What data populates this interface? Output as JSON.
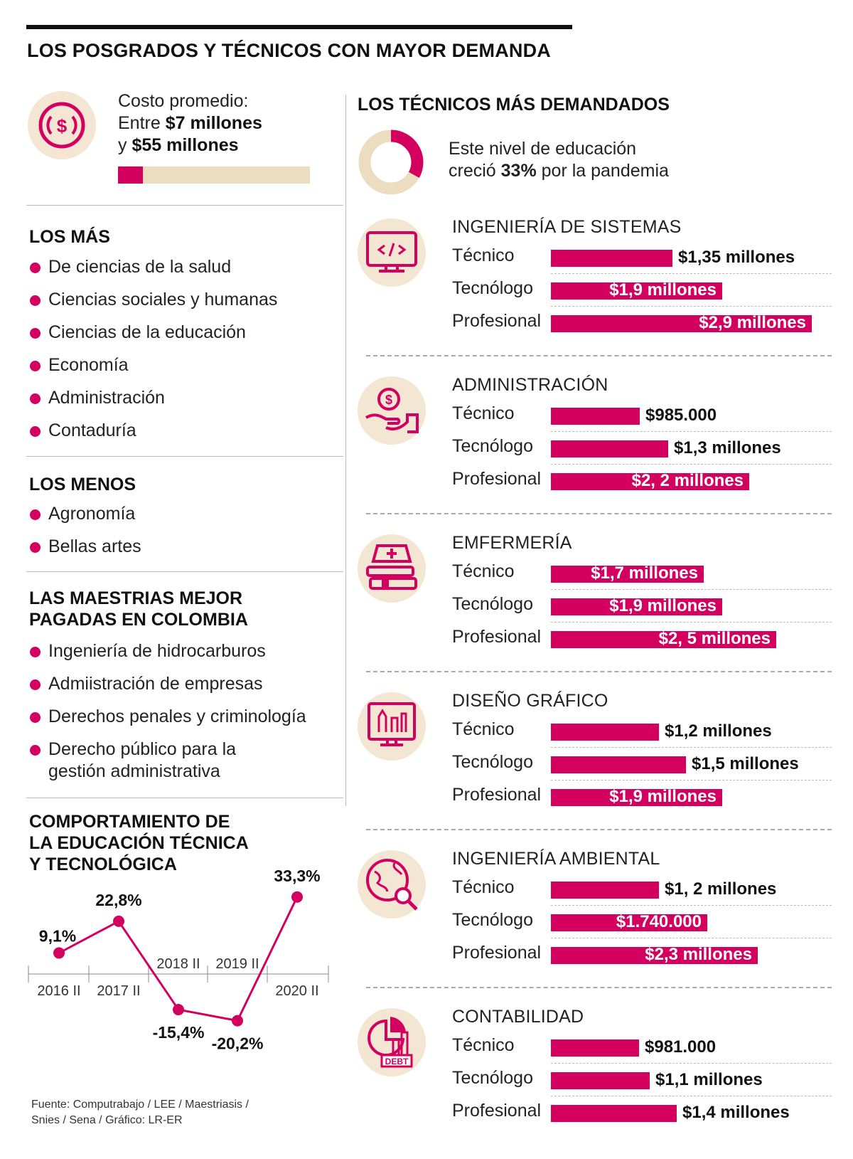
{
  "title": "LOS POSGRADOS Y TÉCNICOS CON MAYOR DEMANDA",
  "cost": {
    "line1": "Costo promedio:",
    "line2_prefix": "Entre ",
    "line2_bold": "$7 millones",
    "line3_prefix": "y ",
    "line3_bold": "$55 millones",
    "icon": "dollar-coin-icon",
    "bar_fraction": 0.13
  },
  "los_mas": {
    "title": "LOS MÁS",
    "items": [
      "De ciencias de la salud",
      "Ciencias sociales y humanas",
      "Ciencias de la educación",
      "Economía",
      "Administración",
      "Contaduría"
    ]
  },
  "los_menos": {
    "title": "LOS MENOS",
    "items": [
      "Agronomía",
      "Bellas artes"
    ]
  },
  "maestrias": {
    "title_line1": "LAS MAESTRIAS MEJOR",
    "title_line2": "PAGADAS EN COLOMBIA",
    "items": [
      "Ingeniería de hidrocarburos",
      "Admiistración de empresas",
      "Derechos penales y criminología",
      "Derecho público para la gestión administrativa"
    ],
    "item4_line1": "Derecho público para la",
    "item4_line2": "gestión administrativa"
  },
  "trend": {
    "title_line1": "COMPORTAMIENTO DE",
    "title_line2": "LA EDUCACIÓN TÉCNICA",
    "title_line3": "Y TECNOLÓGICA"
  },
  "tecnicos": {
    "title": "LOS TÉCNICOS MÁS DEMANDADOS",
    "growth_line1": "Este nivel de educación",
    "growth_line2_prefix": "creció ",
    "growth_line2_bold": "33%",
    "growth_line2_suffix": " por la pandemia",
    "growth_value": 33
  },
  "chart_data": [
    {
      "type": "line",
      "x": [
        "2016 II",
        "2017 II",
        "2018 II",
        "2019 II",
        "2020 II"
      ],
      "values": [
        9.1,
        22.8,
        -15.4,
        -20.2,
        33.3
      ],
      "data_labels": [
        "9,1%",
        "22,8%",
        "-15,4%",
        "-20,2%",
        "33,3%"
      ],
      "ylim": [
        -25,
        40
      ],
      "color": "#d4005f"
    },
    {
      "type": "bar",
      "orientation": "horizontal",
      "unit": "pesos",
      "levels": [
        "Técnico",
        "Tecnólogo",
        "Profesional"
      ],
      "groups": [
        {
          "name": "INGENIERÍA DE SISTEMAS",
          "icon": "code-monitor-icon",
          "values": [
            1350000,
            1900000,
            2900000
          ],
          "labels": [
            "$1,35 millones",
            "$1,9 millones",
            "$2,9 millones"
          ]
        },
        {
          "name": "ADMINISTRACIÓN",
          "icon": "hand-coin-icon",
          "values": [
            985000,
            1300000,
            2200000
          ],
          "labels": [
            "$985.000",
            "$1,3 millones",
            "$2, 2 millones"
          ]
        },
        {
          "name": "EMFERMERÍA",
          "icon": "nurse-cap-books-icon",
          "values": [
            1700000,
            1900000,
            2500000
          ],
          "labels": [
            "$1,7 millones",
            "$1,9 millones",
            "$2, 5 millones"
          ]
        },
        {
          "name": "DISEÑO GRÁFICO",
          "icon": "design-monitor-icon",
          "values": [
            1200000,
            1500000,
            1900000
          ],
          "labels": [
            "$1,2 millones",
            "$1,5 millones",
            "$1,9 millones"
          ]
        },
        {
          "name": "INGENIERÍA AMBIENTAL",
          "icon": "globe-magnifier-icon",
          "values": [
            1200000,
            1740000,
            2300000
          ],
          "labels": [
            "$1, 2 millones",
            "$1.740.000",
            "$2,3 millones"
          ]
        },
        {
          "name": "CONTABILIDAD",
          "icon": "debt-chart-icon",
          "values": [
            981000,
            1100000,
            1400000
          ],
          "labels": [
            "$981.000",
            "$1,1 millones",
            "$1,4 millones"
          ]
        }
      ],
      "color": "#d4005f"
    }
  ],
  "source_line1": "Fuente: Computrabajo / LEE / Maestriasis /",
  "source_line2": "Snies / Sena / Gráfico: LR-ER",
  "colors": {
    "accent": "#d4005f",
    "beige": "#ecdcc0",
    "icon_bg": "#f3e6d3"
  }
}
